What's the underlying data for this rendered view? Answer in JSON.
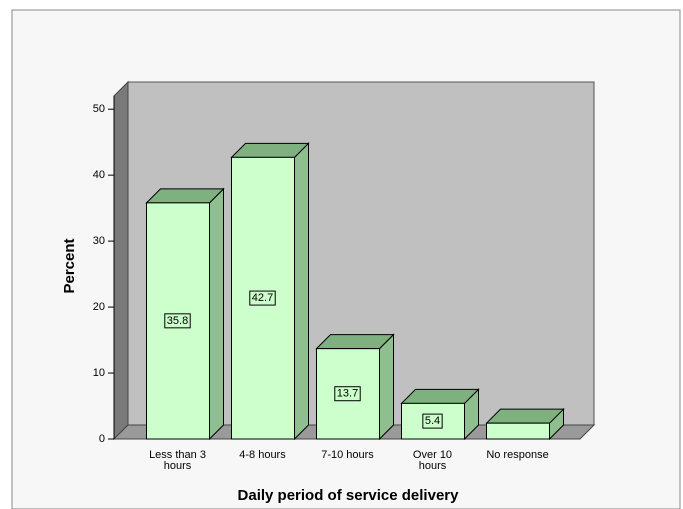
{
  "chart_data": {
    "type": "bar3d",
    "x_label": "Daily period of service delivery",
    "y_label": "Percent",
    "categories": [
      "Less than 3 hours",
      "4-8 hours",
      "7-10 hours",
      "Over 10 hours",
      "No response"
    ],
    "values": [
      35.8,
      42.7,
      13.7,
      5.4,
      2.4
    ],
    "data_labels": [
      true,
      true,
      true,
      true,
      false
    ],
    "color": "#ccffcc",
    "ylim": [
      0,
      52
    ],
    "yticks": [
      0,
      10,
      20,
      30,
      40,
      50
    ],
    "grid": false
  }
}
